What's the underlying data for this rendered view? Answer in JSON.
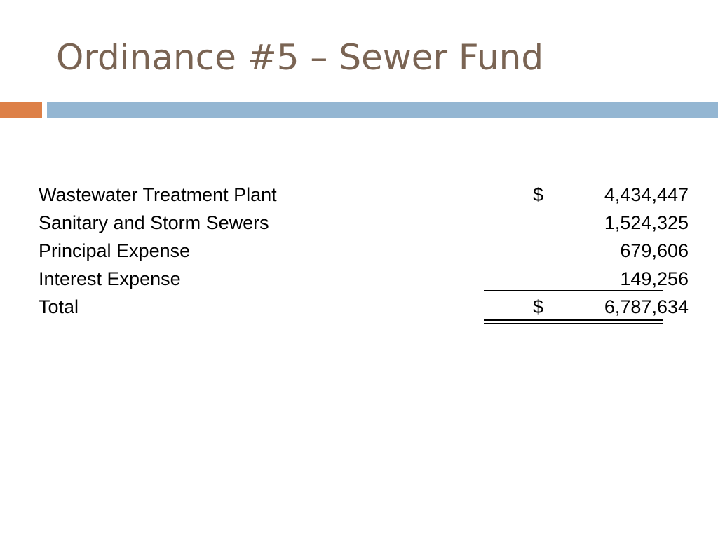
{
  "slide": {
    "title": "Ordinance #5 – Sewer Fund",
    "title_color": "#7a6453",
    "accent_orange": "#dd8047",
    "accent_blue": "#94b6d2"
  },
  "table": {
    "rows": [
      {
        "label": "Wastewater Treatment Plant",
        "currency": "$",
        "amount": "4,434,447"
      },
      {
        "label": "Sanitary and Storm Sewers",
        "currency": "",
        "amount": "1,524,325"
      },
      {
        "label": "Principal Expense",
        "currency": "",
        "amount": "679,606"
      },
      {
        "label": "Interest Expense",
        "currency": "",
        "amount": "149,256"
      }
    ],
    "total": {
      "label": "Total",
      "currency": "$",
      "amount": "6,787,634"
    }
  }
}
